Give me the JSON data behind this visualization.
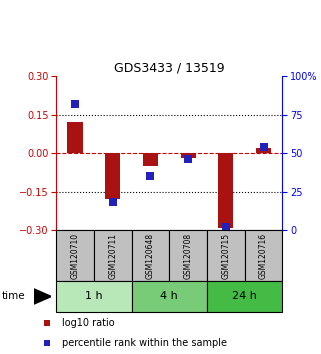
{
  "title": "GDS3433 / 13519",
  "samples": [
    "GSM120710",
    "GSM120711",
    "GSM120648",
    "GSM120708",
    "GSM120715",
    "GSM120716"
  ],
  "log10_ratio": [
    0.12,
    -0.18,
    -0.05,
    -0.02,
    -0.29,
    0.02
  ],
  "percentile_rank": [
    82,
    18,
    35,
    46,
    2,
    54
  ],
  "groups": [
    {
      "label": "1 h",
      "indices": [
        0,
        1
      ],
      "color": "#b8e8b8"
    },
    {
      "label": "4 h",
      "indices": [
        2,
        3
      ],
      "color": "#78cc78"
    },
    {
      "label": "24 h",
      "indices": [
        4,
        5
      ],
      "color": "#44bb44"
    }
  ],
  "ylim_left": [
    -0.3,
    0.3
  ],
  "ylim_right": [
    0,
    100
  ],
  "yticks_left": [
    -0.3,
    -0.15,
    0.0,
    0.15,
    0.3
  ],
  "yticks_right": [
    0,
    25,
    50,
    75,
    100
  ],
  "ytick_labels_right": [
    "0",
    "25",
    "50",
    "75",
    "100%"
  ],
  "bar_color": "#aa1111",
  "dot_color": "#2222bb",
  "bar_width": 0.4,
  "dot_size": 28,
  "hline_color": "#cc0000",
  "sample_box_color": "#c0c0c0",
  "time_label": "time",
  "legend_items": [
    "log10 ratio",
    "percentile rank within the sample"
  ]
}
